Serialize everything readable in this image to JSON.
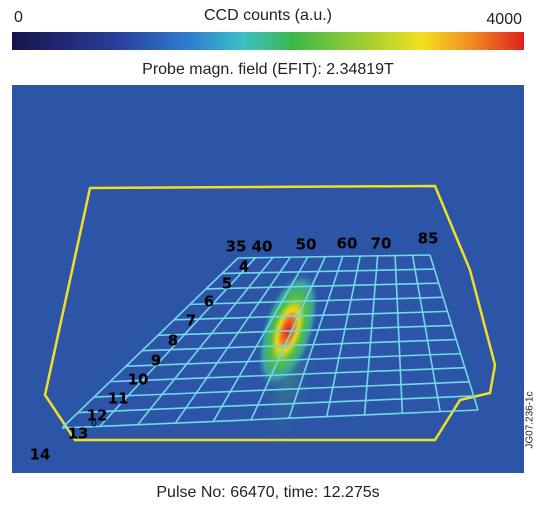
{
  "colorbar": {
    "title": "CCD counts (a.u.)",
    "min_label": "0",
    "max_label": "4000"
  },
  "subtitle": "Probe magn. field (EFIT): 2.34819T",
  "top_labels": [
    "35",
    "40",
    "50",
    "60",
    "70",
    "85"
  ],
  "left_labels": [
    "4",
    "5",
    "6",
    "7",
    "8",
    "9",
    "10",
    "11",
    "12",
    "13",
    "14"
  ],
  "small_label": "0",
  "caption": "Pulse No: 66470, time: 12.275s",
  "figure_id": "JG07.236-1c"
}
